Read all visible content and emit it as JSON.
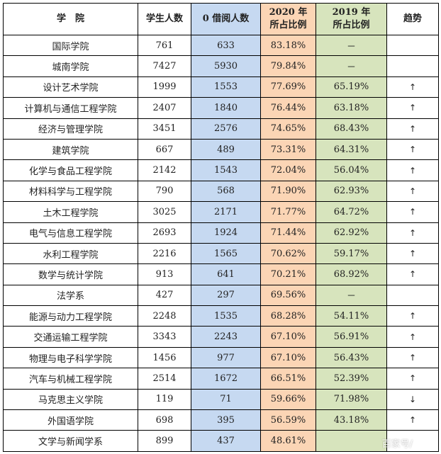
{
  "headers": {
    "college": "学　院",
    "students": "学生人数",
    "zero_borrow": "0 借阅人数",
    "ratio_2020_line1": "2020 年",
    "ratio_2020_line2": "所占比例",
    "ratio_2019_line1": "2019 年",
    "ratio_2019_line2": "所占比例",
    "trend": "趋势"
  },
  "colors": {
    "zero_borrow_bg": "#c6d9f1",
    "ratio_2020_bg": "#fbd5b5",
    "ratio_2019_bg": "#d7e4bd"
  },
  "rows": [
    {
      "college": "国际学院",
      "students": "761",
      "zero_borrow": "633",
      "r2020": "83.18%",
      "r2019": "－",
      "trend": ""
    },
    {
      "college": "城南学院",
      "students": "7427",
      "zero_borrow": "5930",
      "r2020": "79.84%",
      "r2019": "－",
      "trend": ""
    },
    {
      "college": "设计艺术学院",
      "students": "1999",
      "zero_borrow": "1553",
      "r2020": "77.69%",
      "r2019": "65.19%",
      "trend": "↑"
    },
    {
      "college": "计算机与通信工程学院",
      "students": "2407",
      "zero_borrow": "1840",
      "r2020": "76.44%",
      "r2019": "63.18%",
      "trend": "↑"
    },
    {
      "college": "经济与管理学院",
      "students": "3451",
      "zero_borrow": "2576",
      "r2020": "74.65%",
      "r2019": "68.43%",
      "trend": "↑"
    },
    {
      "college": "建筑学院",
      "students": "667",
      "zero_borrow": "489",
      "r2020": "73.31%",
      "r2019": "64.31%",
      "trend": "↑"
    },
    {
      "college": "化学与食品工程学院",
      "students": "2142",
      "zero_borrow": "1543",
      "r2020": "72.04%",
      "r2019": "56.04%",
      "trend": "↑"
    },
    {
      "college": "材料科学与工程学院",
      "students": "790",
      "zero_borrow": "568",
      "r2020": "71.90%",
      "r2019": "62.93%",
      "trend": "↑"
    },
    {
      "college": "土木工程学院",
      "students": "3025",
      "zero_borrow": "2171",
      "r2020": "71.77%",
      "r2019": "64.72%",
      "trend": "↑"
    },
    {
      "college": "电气与信息工程学院",
      "students": "2693",
      "zero_borrow": "1924",
      "r2020": "71.44%",
      "r2019": "62.92%",
      "trend": "↑"
    },
    {
      "college": "水利工程学院",
      "students": "2216",
      "zero_borrow": "1565",
      "r2020": "70.62%",
      "r2019": "59.17%",
      "trend": "↑"
    },
    {
      "college": "数学与统计学院",
      "students": "913",
      "zero_borrow": "641",
      "r2020": "70.21%",
      "r2019": "68.92%",
      "trend": "↑"
    },
    {
      "college": "法学系",
      "students": "427",
      "zero_borrow": "297",
      "r2020": "69.56%",
      "r2019": "－",
      "trend": ""
    },
    {
      "college": "能源与动力工程学院",
      "students": "2248",
      "zero_borrow": "1535",
      "r2020": "68.28%",
      "r2019": "54.11%",
      "trend": "↑"
    },
    {
      "college": "交通运输工程学院",
      "students": "3343",
      "zero_borrow": "2243",
      "r2020": "67.10%",
      "r2019": "56.91%",
      "trend": "↑"
    },
    {
      "college": "物理与电子科学学院",
      "students": "1456",
      "zero_borrow": "977",
      "r2020": "67.10%",
      "r2019": "56.43%",
      "trend": "↑"
    },
    {
      "college": "汽车与机械工程学院",
      "students": "2514",
      "zero_borrow": "1672",
      "r2020": "66.51%",
      "r2019": "52.39%",
      "trend": "↑"
    },
    {
      "college": "马克思主义学院",
      "students": "119",
      "zero_borrow": "71",
      "r2020": "59.66%",
      "r2019": "71.98%",
      "trend": "↓"
    },
    {
      "college": "外国语学院",
      "students": "698",
      "zero_borrow": "395",
      "r2020": "56.59%",
      "r2019": "43.18%",
      "trend": "↑"
    },
    {
      "college": "文学与新闻学系",
      "students": "899",
      "zero_borrow": "437",
      "r2020": "48.61%",
      "r2019": "",
      "trend": ""
    }
  ],
  "watermark": "百家号/"
}
